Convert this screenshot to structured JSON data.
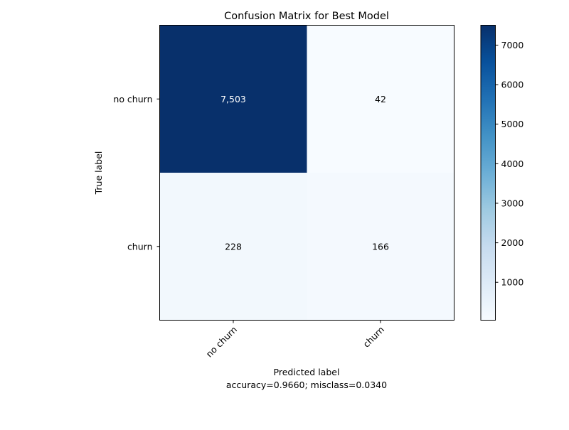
{
  "chart_data": {
    "type": "heatmap",
    "title": "Confusion Matrix for Best Model",
    "xlabel": "Predicted label",
    "ylabel": "True label",
    "footer": "accuracy=0.9660; misclass=0.0340",
    "x_categories": [
      "no churn",
      "churn"
    ],
    "y_categories": [
      "no churn",
      "churn"
    ],
    "values": [
      [
        7503,
        42
      ],
      [
        228,
        166
      ]
    ],
    "cell_labels": [
      [
        "7,503",
        "42"
      ],
      [
        "228",
        "166"
      ]
    ],
    "colormap": "Blues",
    "colorbar": {
      "vmin": 42,
      "vmax": 7503,
      "ticks": [
        1000,
        2000,
        3000,
        4000,
        5000,
        6000,
        7000
      ]
    }
  }
}
